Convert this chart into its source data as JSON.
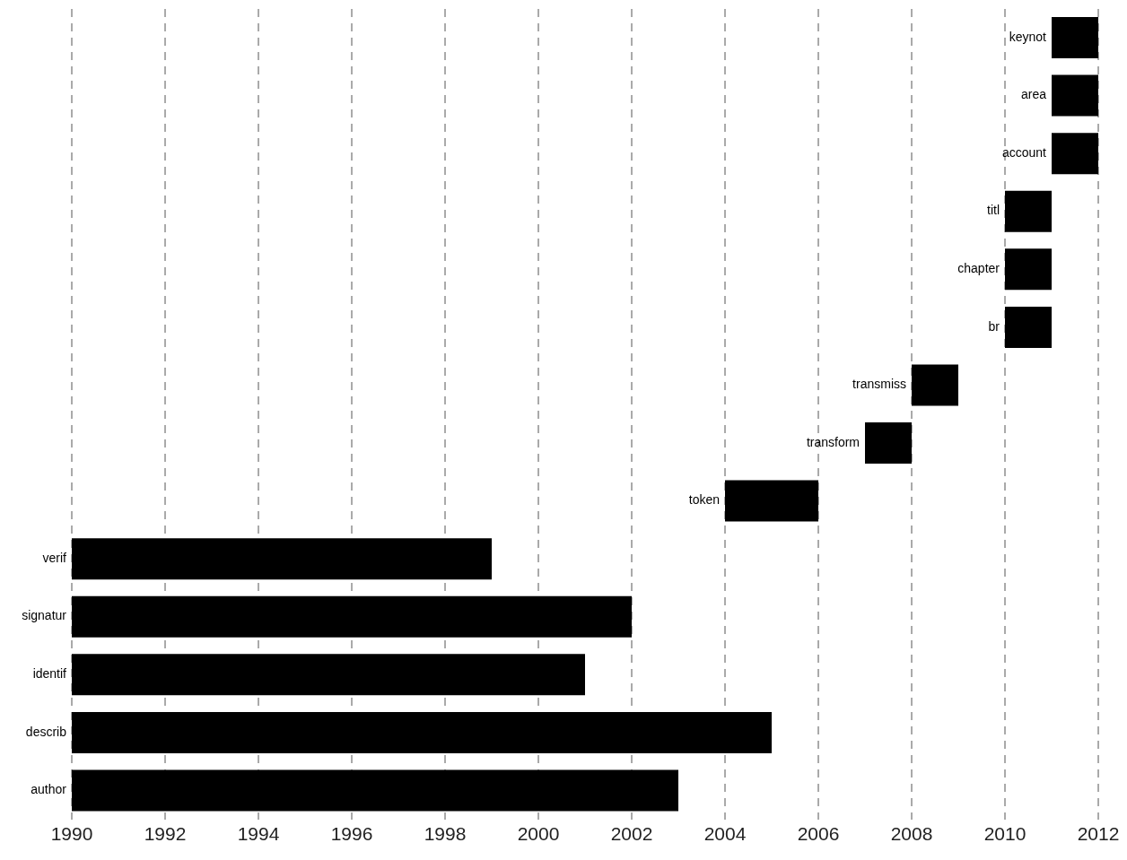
{
  "chart_data": {
    "type": "bar",
    "orientation": "horizontal",
    "categories": [
      "keynot",
      "area",
      "account",
      "titl",
      "chapter",
      "br",
      "transmiss",
      "transform",
      "token",
      "verif",
      "signatur",
      "identif",
      "describ",
      "author"
    ],
    "base": [
      2011,
      2011,
      2011,
      2010,
      2010,
      2010,
      2008,
      2007,
      2004,
      1990,
      1990,
      1990,
      1990,
      1990
    ],
    "values": [
      1,
      1,
      1,
      1,
      1,
      1,
      1,
      1,
      2,
      9,
      12,
      11,
      15,
      13
    ],
    "color": "#000000",
    "xlim": [
      1990,
      2012
    ],
    "xticks": [
      1990,
      1992,
      1994,
      1996,
      1998,
      2000,
      2002,
      2004,
      2006,
      2008,
      2010,
      2012
    ],
    "grid": "x",
    "legend": false
  }
}
